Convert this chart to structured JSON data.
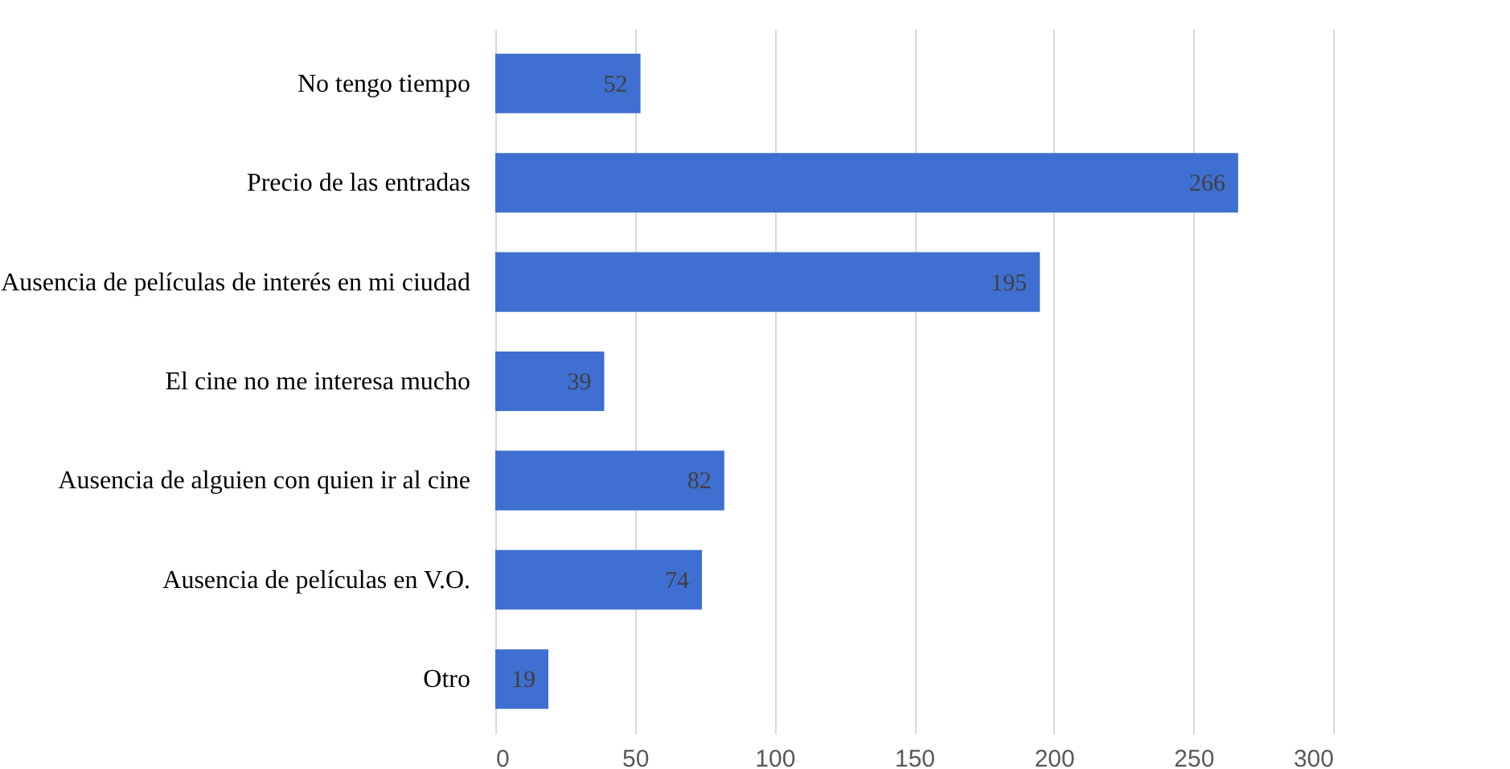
{
  "chart_data": {
    "type": "bar",
    "orientation": "horizontal",
    "categories": [
      "No tengo tiempo",
      "Precio de las entradas",
      "Ausencia de películas de interés en mi ciudad",
      "El cine no me interesa mucho",
      "Ausencia de alguien con quien ir al cine",
      "Ausencia de películas en V.O.",
      "Otro"
    ],
    "values": [
      52,
      266,
      195,
      39,
      82,
      74,
      19
    ],
    "color": "#3f6fd1",
    "xlim": [
      0,
      300
    ],
    "xticks": [
      0,
      50,
      100,
      150,
      200,
      250,
      300
    ],
    "grid": "x",
    "data_labels": true
  }
}
